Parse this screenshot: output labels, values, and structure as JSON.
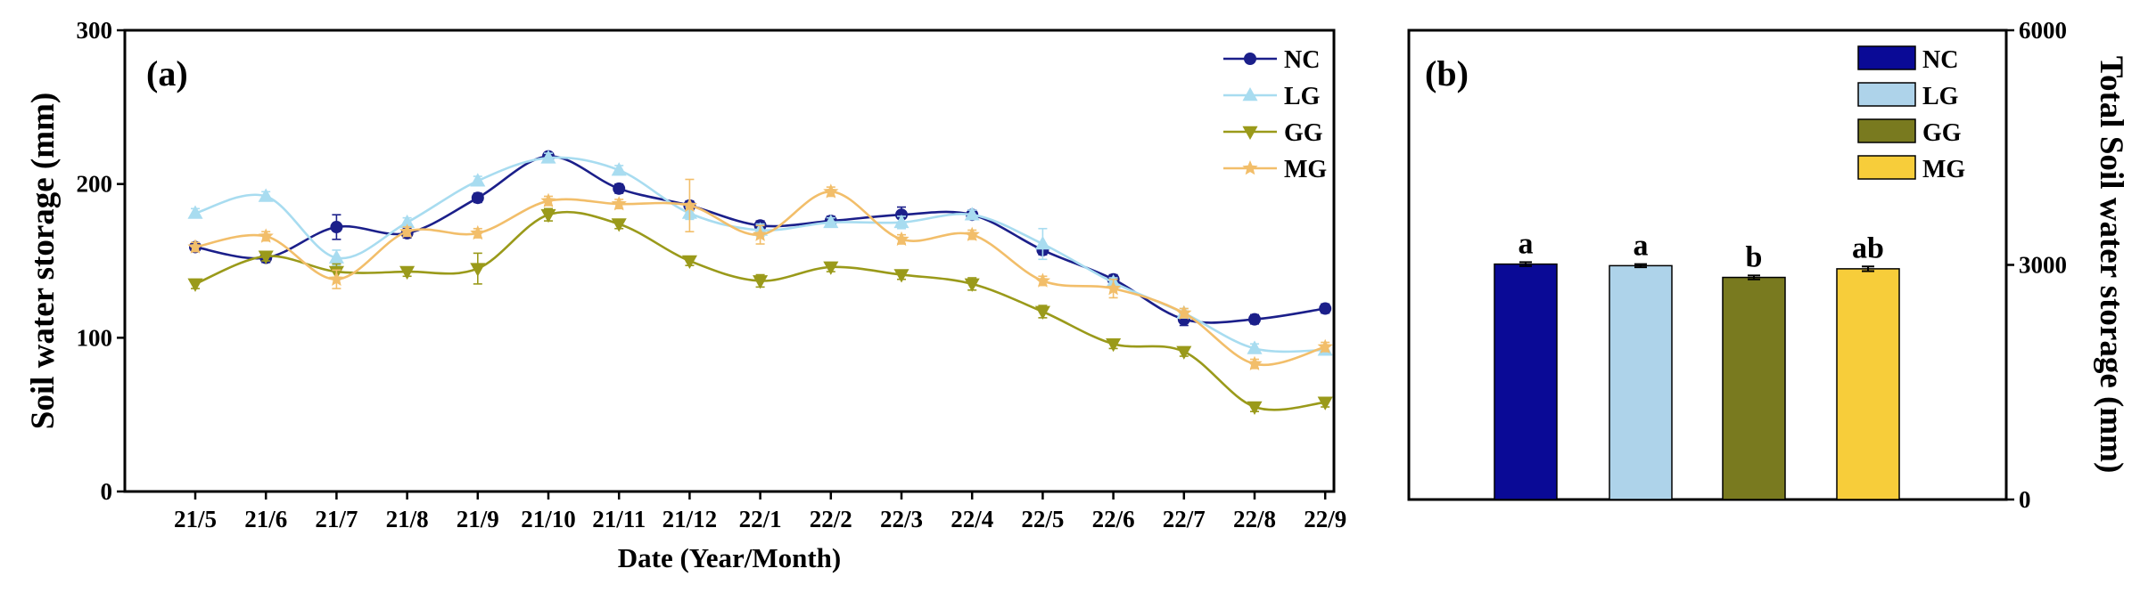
{
  "chart_data": [
    {
      "type": "line",
      "panel_label": "(a)",
      "xlabel": "Date (Year/Month)",
      "ylabel": "Soil water storage (mm)",
      "categories": [
        "21/5",
        "21/6",
        "21/7",
        "21/8",
        "21/9",
        "21/10",
        "21/11",
        "21/12",
        "22/1",
        "22/2",
        "22/3",
        "22/4",
        "22/5",
        "22/6",
        "22/7",
        "22/8",
        "22/9"
      ],
      "ylim": [
        0,
        300
      ],
      "yticks": [
        "0",
        "100",
        "200",
        "300"
      ],
      "grid": false,
      "legend_position": "top-right",
      "series": [
        {
          "name": "NC",
          "color": "#1b1f8a",
          "marker": "circle",
          "values": [
            159,
            152,
            172,
            168,
            191,
            218,
            197,
            186,
            173,
            176,
            180,
            180,
            157,
            138,
            112,
            112,
            119
          ],
          "errors": [
            3,
            3,
            8,
            3,
            3,
            2,
            3,
            3,
            3,
            3,
            5,
            3,
            3,
            3,
            4,
            3,
            3
          ]
        },
        {
          "name": "LG",
          "color": "#a8dcf0",
          "marker": "triangle-up",
          "values": [
            181,
            192,
            152,
            175,
            202,
            217,
            209,
            181,
            170,
            175,
            175,
            180,
            161,
            136,
            116,
            93,
            92
          ],
          "errors": [
            3,
            3,
            5,
            3,
            3,
            3,
            3,
            4,
            4,
            3,
            4,
            3,
            10,
            3,
            3,
            3,
            3
          ]
        },
        {
          "name": "GG",
          "color": "#9a9a1a",
          "marker": "triangle-down",
          "values": [
            135,
            153,
            143,
            143,
            145,
            180,
            174,
            150,
            137,
            146,
            141,
            135,
            117,
            96,
            91,
            55,
            58
          ],
          "errors": [
            3,
            3,
            5,
            3,
            10,
            4,
            3,
            3,
            4,
            3,
            3,
            4,
            4,
            3,
            3,
            3,
            3
          ]
        },
        {
          "name": "MG",
          "color": "#f2be6a",
          "marker": "star",
          "values": [
            159,
            166,
            138,
            169,
            168,
            189,
            187,
            186,
            167,
            195,
            164,
            167,
            137,
            132,
            116,
            83,
            94
          ],
          "errors": [
            3,
            3,
            6,
            3,
            3,
            3,
            3,
            17,
            6,
            3,
            3,
            3,
            3,
            6,
            3,
            3,
            3
          ]
        }
      ]
    },
    {
      "type": "bar",
      "panel_label": "(b)",
      "ylabel": "Total Soil water storage (mm)",
      "categories": [
        "NC",
        "LG",
        "GG",
        "MG"
      ],
      "values": [
        3010,
        2990,
        2840,
        2950
      ],
      "errors": [
        25,
        20,
        25,
        30
      ],
      "significance": [
        "a",
        "a",
        "b",
        "ab"
      ],
      "colors": [
        "#0a0a96",
        "#aed3ea",
        "#797a1f",
        "#f7cd3a"
      ],
      "ylim": [
        0,
        6000
      ],
      "yticks": [
        "0",
        "3000",
        "6000"
      ],
      "yaxis_side": "right",
      "grid": false,
      "legend_position": "top-center"
    }
  ]
}
